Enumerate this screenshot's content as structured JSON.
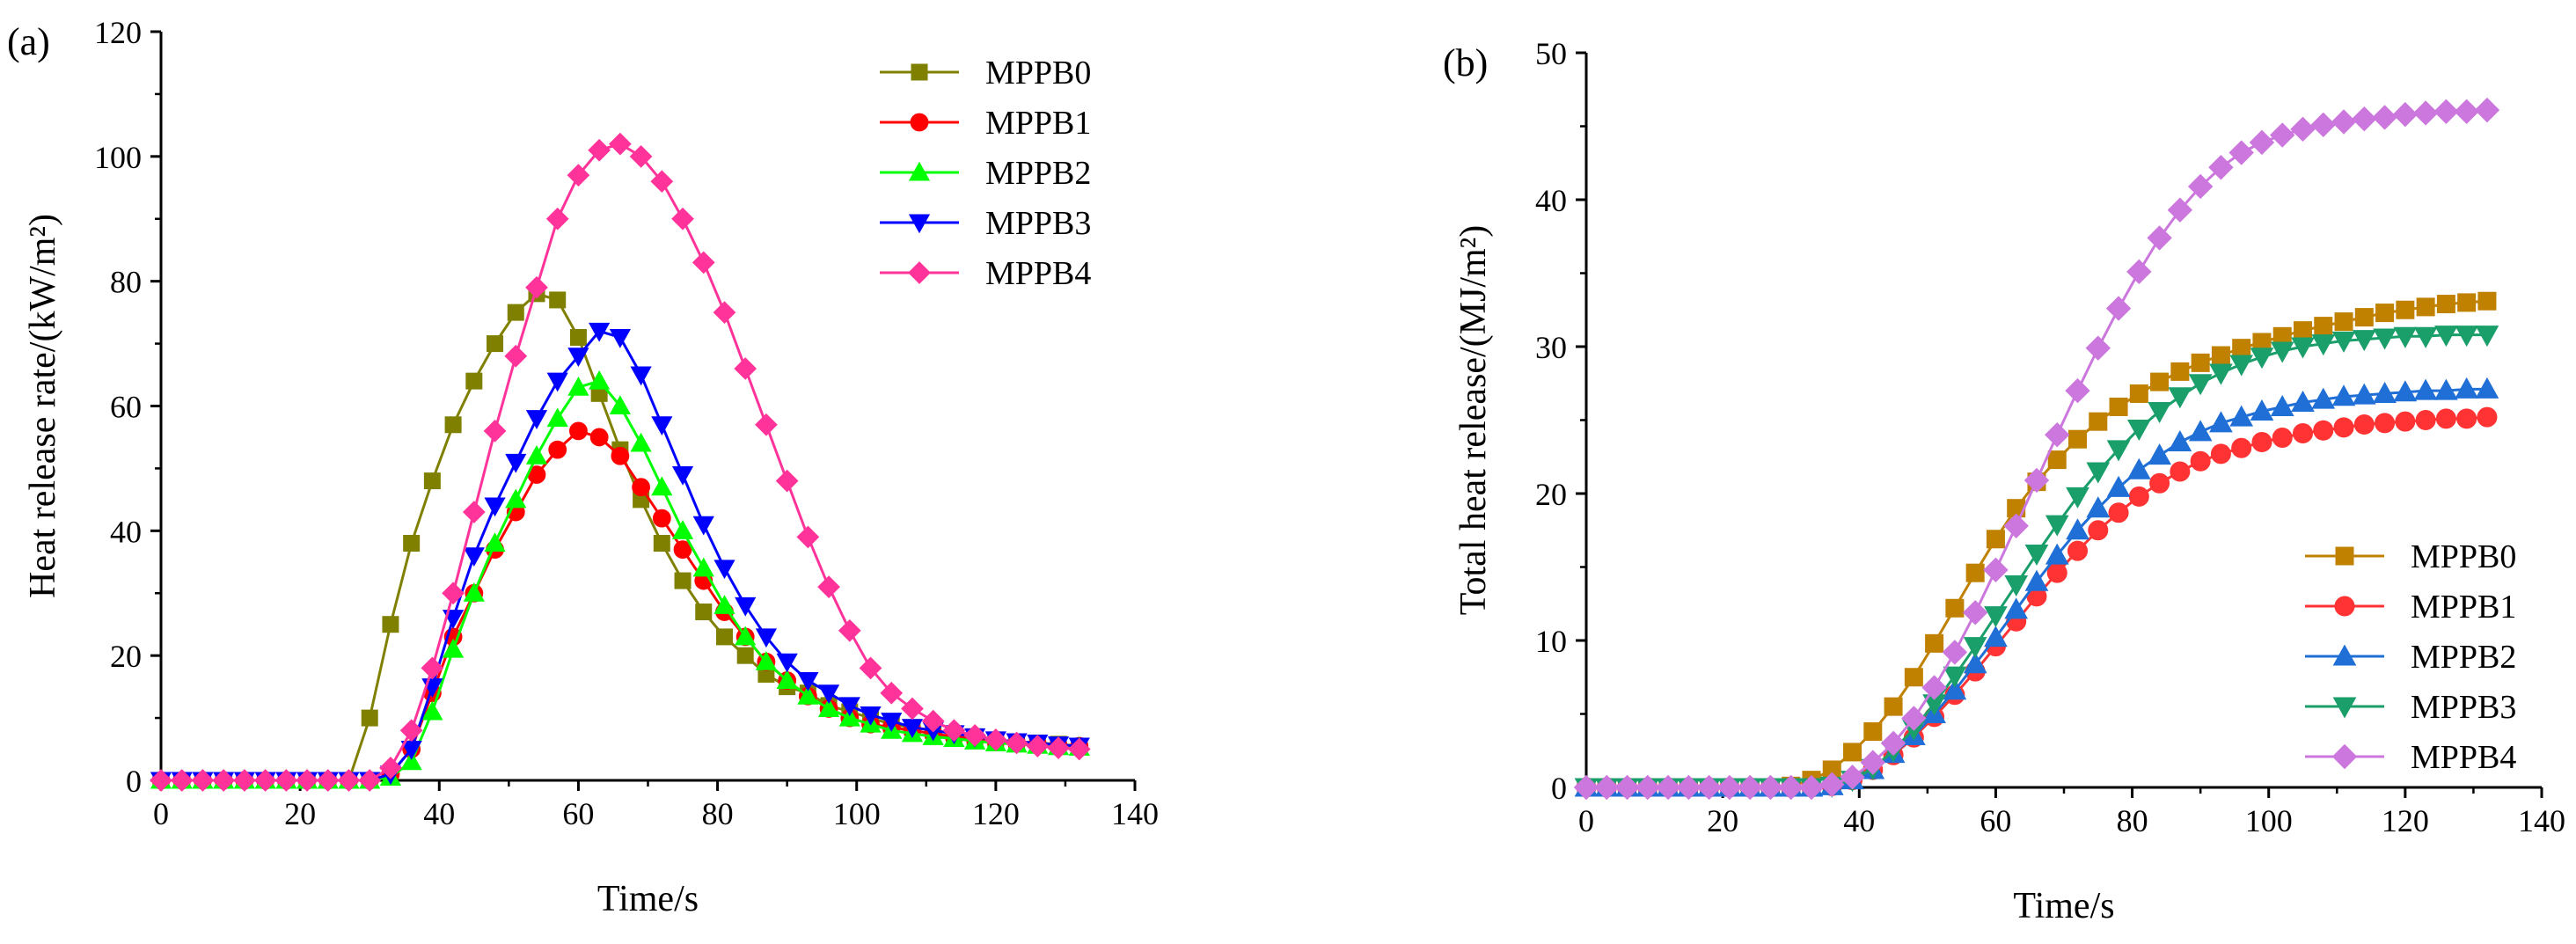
{
  "chart_data": [
    {
      "type": "line",
      "panel_label": "(a)",
      "xlabel": "Time/s",
      "ylabel": "Heat release rate/(kW/m²)",
      "xlim": [
        0,
        140
      ],
      "ylim": [
        0,
        120
      ],
      "xticks": [
        0,
        20,
        40,
        60,
        80,
        100,
        120,
        140
      ],
      "yticks": [
        0,
        20,
        40,
        60,
        80,
        100,
        120
      ],
      "grid": false,
      "legend_position": "top-right",
      "x": [
        0,
        3,
        6,
        9,
        12,
        15,
        18,
        21,
        24,
        27,
        30,
        33,
        36,
        39,
        42,
        45,
        48,
        51,
        54,
        57,
        60,
        63,
        66,
        69,
        72,
        75,
        78,
        81,
        84,
        87,
        90,
        93,
        96,
        99,
        102,
        105,
        108,
        111,
        114,
        117,
        120,
        123,
        126,
        129,
        132
      ],
      "series": [
        {
          "name": "MPPB0",
          "color": "#808000",
          "marker": "square",
          "values": [
            0,
            0,
            0,
            0,
            0,
            0,
            0,
            0,
            0,
            0,
            10,
            25,
            38,
            48,
            57,
            64,
            70,
            75,
            78,
            77,
            71,
            62,
            53,
            45,
            38,
            32,
            27,
            23,
            20,
            17,
            15,
            14,
            12,
            11,
            10,
            9,
            8.5,
            8,
            7.5,
            7,
            6.5,
            6.2,
            6,
            5.8,
            5.5
          ]
        },
        {
          "name": "MPPB1",
          "color": "#ff0000",
          "marker": "circle",
          "values": [
            0,
            0,
            0,
            0,
            0,
            0,
            0,
            0,
            0,
            0,
            0,
            1,
            5,
            14,
            23,
            30,
            37,
            43,
            49,
            53,
            56,
            55,
            52,
            47,
            42,
            37,
            32,
            27,
            23,
            19,
            16,
            13.5,
            11.5,
            10,
            9,
            8.5,
            8,
            7.5,
            7,
            6.7,
            6.3,
            6,
            5.8,
            5.6,
            5.5
          ]
        },
        {
          "name": "MPPB2",
          "color": "#00ff00",
          "marker": "triangle-up",
          "values": [
            0,
            0,
            0,
            0,
            0,
            0,
            0,
            0,
            0,
            0,
            0,
            0.5,
            3,
            11,
            21,
            30,
            38,
            45,
            52,
            58,
            63,
            64,
            60,
            54,
            47,
            40,
            34,
            28,
            23,
            19,
            16,
            13.5,
            11.5,
            10,
            9,
            8,
            7.5,
            7,
            6.7,
            6.3,
            6,
            5.8,
            5.6,
            5.4,
            5.3
          ]
        },
        {
          "name": "MPPB3",
          "color": "#0000ff",
          "marker": "triangle-down",
          "values": [
            0,
            0,
            0,
            0,
            0,
            0,
            0,
            0,
            0,
            0,
            0,
            1,
            5,
            15,
            26,
            36,
            44,
            51,
            58,
            64,
            68,
            72,
            71,
            65,
            57,
            49,
            41,
            34,
            28,
            23,
            19,
            16,
            14,
            12,
            10.5,
            9.5,
            8.5,
            8,
            7.5,
            7,
            6.5,
            6.2,
            6,
            5.7,
            5.5
          ]
        },
        {
          "name": "MPPB4",
          "color": "#ff3399",
          "marker": "diamond",
          "values": [
            0,
            0,
            0,
            0,
            0,
            0,
            0,
            0,
            0,
            0,
            0,
            2,
            8,
            18,
            30,
            43,
            56,
            68,
            79,
            90,
            97,
            101,
            102,
            100,
            96,
            90,
            83,
            75,
            66,
            57,
            48,
            39,
            31,
            24,
            18,
            14,
            11.5,
            9.5,
            8,
            7.2,
            6.5,
            6,
            5.5,
            5.2,
            5
          ]
        }
      ]
    },
    {
      "type": "line",
      "panel_label": "(b)",
      "xlabel": "Time/s",
      "ylabel": "Total heat release/(MJ/m²)",
      "xlim": [
        0,
        140
      ],
      "ylim": [
        0,
        50
      ],
      "xticks": [
        0,
        20,
        40,
        60,
        80,
        100,
        120,
        140
      ],
      "yticks": [
        0,
        10,
        20,
        30,
        40,
        50
      ],
      "grid": false,
      "legend_position": "bottom-right",
      "x": [
        0,
        3,
        6,
        9,
        12,
        15,
        18,
        21,
        24,
        27,
        30,
        33,
        36,
        39,
        42,
        45,
        48,
        51,
        54,
        57,
        60,
        63,
        66,
        69,
        72,
        75,
        78,
        81,
        84,
        87,
        90,
        93,
        96,
        99,
        102,
        105,
        108,
        111,
        114,
        117,
        120,
        123,
        126,
        129,
        132
      ],
      "series": [
        {
          "name": "MPPB0",
          "color": "#c08000",
          "marker": "square",
          "values": [
            0,
            0,
            0,
            0,
            0,
            0,
            0,
            0,
            0,
            0,
            0.1,
            0.5,
            1.2,
            2.4,
            3.8,
            5.5,
            7.5,
            9.8,
            12.2,
            14.6,
            16.9,
            19,
            20.8,
            22.3,
            23.7,
            24.9,
            25.9,
            26.8,
            27.6,
            28.3,
            28.9,
            29.4,
            29.9,
            30.3,
            30.7,
            31.1,
            31.4,
            31.7,
            32,
            32.3,
            32.5,
            32.7,
            32.9,
            33,
            33.1
          ]
        },
        {
          "name": "MPPB1",
          "color": "#ff3333",
          "marker": "circle",
          "values": [
            0,
            0,
            0,
            0,
            0,
            0,
            0,
            0,
            0,
            0,
            0,
            0,
            0.1,
            0.5,
            1.2,
            2.2,
            3.4,
            4.8,
            6.3,
            7.9,
            9.6,
            11.3,
            13,
            14.6,
            16.1,
            17.5,
            18.7,
            19.8,
            20.7,
            21.5,
            22.2,
            22.7,
            23.1,
            23.5,
            23.8,
            24.1,
            24.3,
            24.5,
            24.7,
            24.8,
            24.9,
            25,
            25.1,
            25.1,
            25.2
          ]
        },
        {
          "name": "MPPB2",
          "color": "#1f6fd6",
          "marker": "triangle-up",
          "values": [
            0,
            0,
            0,
            0,
            0,
            0,
            0,
            0,
            0,
            0,
            0,
            0,
            0.1,
            0.5,
            1.2,
            2.3,
            3.5,
            5,
            6.6,
            8.4,
            10.2,
            12.1,
            14,
            15.8,
            17.5,
            19,
            20.4,
            21.6,
            22.6,
            23.5,
            24.2,
            24.8,
            25.2,
            25.6,
            25.9,
            26.2,
            26.4,
            26.6,
            26.7,
            26.8,
            26.9,
            27,
            27,
            27.1,
            27.1
          ]
        },
        {
          "name": "MPPB3",
          "color": "#1a9e6a",
          "marker": "triangle-down",
          "values": [
            0,
            0,
            0,
            0,
            0,
            0,
            0,
            0,
            0,
            0,
            0,
            0,
            0.1,
            0.5,
            1.3,
            2.5,
            4,
            5.7,
            7.6,
            9.6,
            11.7,
            13.8,
            15.9,
            17.9,
            19.8,
            21.5,
            23,
            24.4,
            25.6,
            26.6,
            27.5,
            28.2,
            28.8,
            29.3,
            29.7,
            30,
            30.2,
            30.4,
            30.5,
            30.6,
            30.7,
            30.7,
            30.8,
            30.8,
            30.8
          ]
        },
        {
          "name": "MPPB4",
          "color": "#cc77dd",
          "marker": "diamond",
          "values": [
            0,
            0,
            0,
            0,
            0,
            0,
            0,
            0,
            0,
            0,
            0,
            0,
            0.2,
            0.7,
            1.7,
            3,
            4.7,
            6.8,
            9.2,
            11.9,
            14.8,
            17.8,
            20.9,
            24,
            27,
            29.9,
            32.6,
            35.1,
            37.4,
            39.3,
            40.9,
            42.2,
            43.2,
            43.9,
            44.4,
            44.8,
            45.1,
            45.3,
            45.5,
            45.6,
            45.8,
            45.9,
            46,
            46,
            46.1
          ]
        }
      ]
    }
  ]
}
